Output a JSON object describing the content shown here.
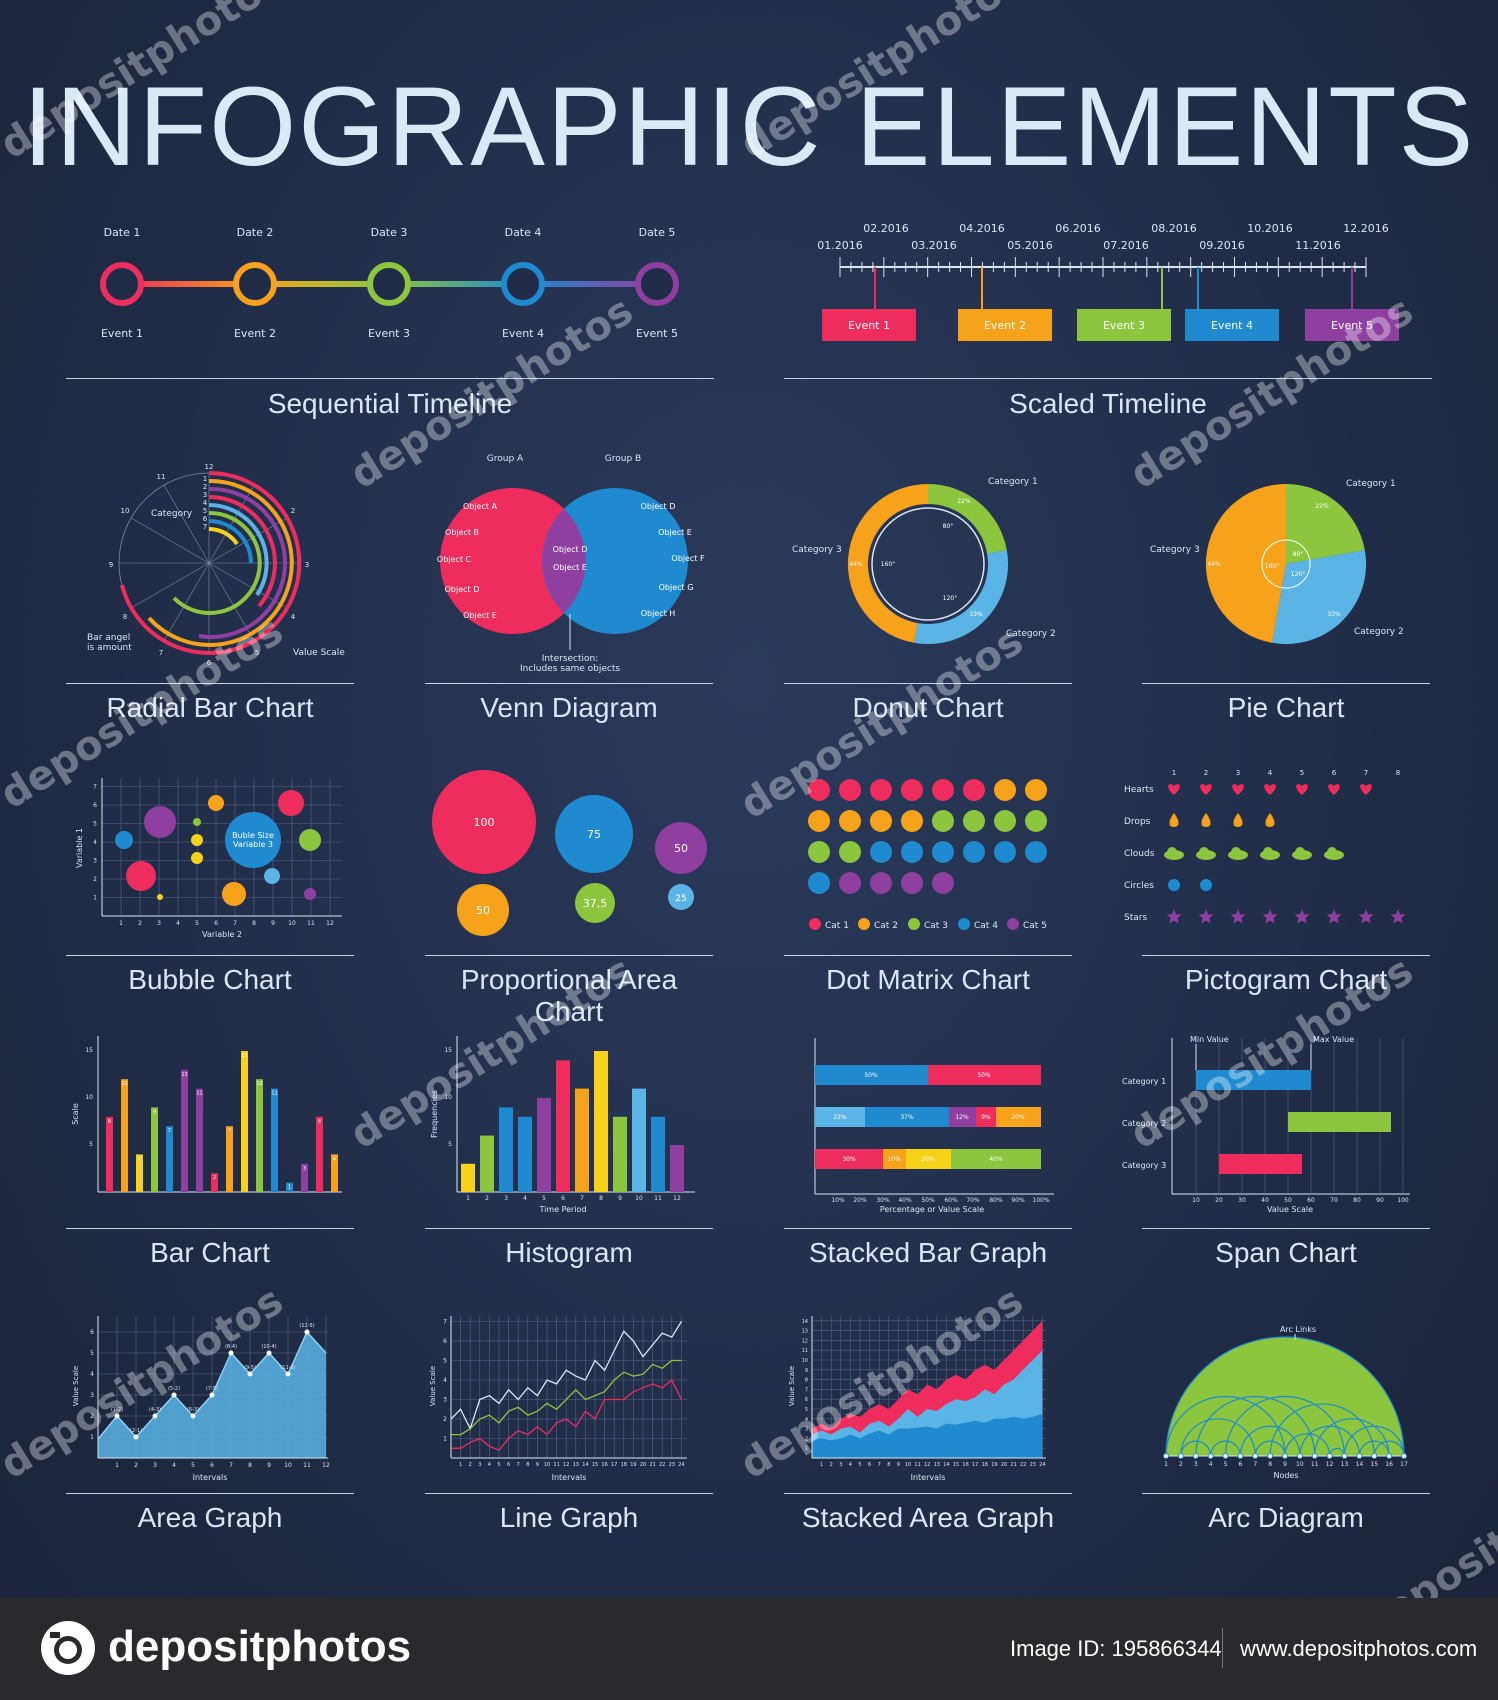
{
  "title": "INFOGRAPHIC ELEMENTS",
  "colors": {
    "red": "#ee2d5e",
    "orange": "#f7a21b",
    "green": "#8cc63f",
    "blue": "#1f8ad0",
    "purple": "#8e3fa0",
    "lightblue": "#5ab4e6",
    "yellow": "#f6d218"
  },
  "captions": {
    "sequential_timeline": "Sequential Timeline",
    "scaled_timeline": "Scaled Timeline",
    "radial_bar": "Radial Bar Chart",
    "venn": "Venn Diagram",
    "donut": "Donut  Chart",
    "pie": "Pie Chart",
    "bubble": "Bubble Chart",
    "prop_area": "Proportional Area Chart",
    "dot_matrix": "Dot Matrix Chart",
    "pictogram": "Pictogram Chart",
    "bar": "Bar Chart",
    "histogram": "Histogram",
    "stacked_bar": "Stacked Bar Graph",
    "span": "Span Chart",
    "area": "Area Graph",
    "line": "Line Graph",
    "stacked_area": "Stacked Area Graph",
    "arc": "Arc Diagram"
  },
  "sequential_timeline": {
    "dates": [
      "Date 1",
      "Date 2",
      "Date 3",
      "Date 4",
      "Date 5"
    ],
    "events": [
      "Event 1",
      "Event 2",
      "Event 3",
      "Event 4",
      "Event 5"
    ]
  },
  "scaled_timeline": {
    "months_top": [
      "02.2016",
      "04.2016",
      "06.2016",
      "08.2016",
      "10.2016",
      "12.2016"
    ],
    "months_bottom": [
      "01.2016",
      "03.2016",
      "05.2016",
      "07.2016",
      "09.2016",
      "11.2016"
    ],
    "events": [
      "Event 1",
      "Event 2",
      "Event 3",
      "Event 4",
      "Event 5"
    ]
  },
  "radial": {
    "label_category": "Category",
    "label_bar_angle": "Bar angel",
    "label_is_amount": "is amount",
    "label_value_scale": "Value Scale",
    "ticks": [
      "1",
      "2",
      "3",
      "4",
      "5",
      "6",
      "7",
      "8",
      "9",
      "10",
      "11",
      "12"
    ],
    "inner_ticks": [
      "1",
      "2",
      "3",
      "4",
      "5",
      "6",
      "7"
    ]
  },
  "venn": {
    "group_a": "Group A",
    "group_b": "Group B",
    "a_items": [
      "Object A",
      "Object B",
      "Object C",
      "Object D",
      "Object E"
    ],
    "b_items": [
      "Object D",
      "Object E",
      "Object F",
      "Object G",
      "Object H"
    ],
    "intersect_items": [
      "Object D",
      "Object E"
    ],
    "intersection_note_1": "Intersection:",
    "intersection_note_2": "Includes same objects"
  },
  "donut": {
    "categories": [
      "Category 1",
      "Category 2",
      "Category 3"
    ],
    "percents": [
      "22%",
      "33%",
      "44%"
    ],
    "angles": [
      "80°",
      "120°",
      "160°"
    ]
  },
  "pie": {
    "categories": [
      "Category 1",
      "Category 2",
      "Category 3"
    ],
    "percents": [
      "22%",
      "33%",
      "44%"
    ],
    "angles": [
      "80°",
      "120°",
      "160°"
    ]
  },
  "bubble": {
    "xlabel": "Variable 2",
    "ylabel": "Variable 1",
    "bubble_label_1": "Buble Size",
    "bubble_label_2": "Variable 3",
    "xticks": [
      "1",
      "2",
      "3",
      "4",
      "5",
      "6",
      "7",
      "8",
      "9",
      "10",
      "11",
      "12"
    ],
    "yticks": [
      "1",
      "2",
      "3",
      "4",
      "5",
      "6",
      "7"
    ]
  },
  "prop_area": {
    "labels": [
      "100",
      "75",
      "50",
      "50",
      "37,5",
      "25"
    ]
  },
  "dot_matrix": {
    "legend": [
      "Cat 1",
      "Cat 2",
      "Cat 3",
      "Cat 4",
      "Cat 5"
    ]
  },
  "pictogram": {
    "rows": [
      "Hearts",
      "Drops",
      "Clouds",
      "Circles",
      "Stars"
    ],
    "cols": [
      "1",
      "2",
      "3",
      "4",
      "5",
      "6",
      "7",
      "8"
    ]
  },
  "bar_chart": {
    "ylabel": "Scale",
    "yticks": [
      "5",
      "10",
      "15"
    ]
  },
  "histogram": {
    "xlabel": "Time Period",
    "ylabel": "Frequencies",
    "xticks": [
      "1",
      "2",
      "3",
      "4",
      "5",
      "6",
      "7",
      "8",
      "9",
      "10",
      "11",
      "12"
    ],
    "yticks": [
      "5",
      "10",
      "15"
    ]
  },
  "stacked_bar": {
    "xlabel": "Percentage or Value Scale",
    "xticks": [
      "10%",
      "20%",
      "30%",
      "40%",
      "50%",
      "60%",
      "70%",
      "80%",
      "90%",
      "100%"
    ],
    "row1": [
      "50%",
      "50%"
    ],
    "row2": [
      "22%",
      "37%",
      "12%",
      "9%",
      "20%"
    ],
    "row3": [
      "30%",
      "10%",
      "20%",
      "40%"
    ]
  },
  "span": {
    "min_label": "Min Value",
    "max_label": "Max Value",
    "categories": [
      "Category 1",
      "Category 2",
      "Category 3"
    ],
    "xlabel": "Value Scale",
    "xticks": [
      "10",
      "20",
      "30",
      "40",
      "50",
      "60",
      "70",
      "80",
      "90",
      "100"
    ]
  },
  "area": {
    "xlabel": "Intervals",
    "ylabel": "Value Scale",
    "point_labels": [
      "(1-2)",
      "(2-1)",
      "(4-3)",
      "(5-2)",
      "(6-3)",
      "(7-5)",
      "(8-4)",
      "(9-5)",
      "(10-4)",
      "(11-6)",
      "(12-5)"
    ],
    "xticks": [
      "1",
      "2",
      "3",
      "4",
      "5",
      "6",
      "7",
      "8",
      "9",
      "10",
      "11",
      "12"
    ],
    "yticks": [
      "1",
      "2",
      "3",
      "4",
      "5",
      "6"
    ]
  },
  "line": {
    "xlabel": "Intervals",
    "ylabel": "Value Scale",
    "yticks": [
      "1",
      "2",
      "3",
      "4",
      "5",
      "6",
      "7"
    ]
  },
  "stacked_area": {
    "xlabel": "Intervals",
    "ylabel": "Value Scale",
    "yticks": [
      "1",
      "2",
      "3",
      "4",
      "5",
      "6",
      "7",
      "8",
      "9",
      "10",
      "11",
      "12",
      "13",
      "14"
    ]
  },
  "arc": {
    "xlabel": "Nodes",
    "top_label": "Arc Links",
    "nodes": [
      "1",
      "2",
      "3",
      "4",
      "5",
      "6",
      "7",
      "8",
      "9",
      "10",
      "11",
      "12",
      "13",
      "14",
      "15",
      "16",
      "17"
    ]
  },
  "watermark": "depositphotos",
  "footer": {
    "logo_text": "depositphotos",
    "image_id": "Image ID: 195866344",
    "url": "www.depositphotos.com"
  }
}
